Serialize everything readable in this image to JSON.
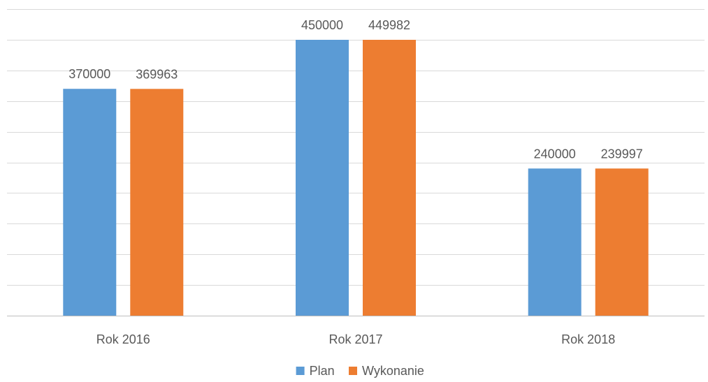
{
  "chart_data": {
    "type": "bar",
    "categories": [
      "Rok 2016",
      "Rok 2017",
      "Rok 2018"
    ],
    "series": [
      {
        "name": "Plan",
        "values": [
          370000,
          450000,
          240000
        ],
        "labels": [
          "370000",
          "450000",
          "240000"
        ],
        "color": "#5b9bd5"
      },
      {
        "name": "Wykonanie",
        "values": [
          369963,
          449982,
          239997
        ],
        "labels": [
          "369963",
          "449982",
          "239997"
        ],
        "color": "#ed7d31"
      }
    ],
    "title": "",
    "xlabel": "",
    "ylabel": "",
    "ylim": [
      0,
      500000
    ],
    "grid": true,
    "legend_position": "bottom"
  }
}
